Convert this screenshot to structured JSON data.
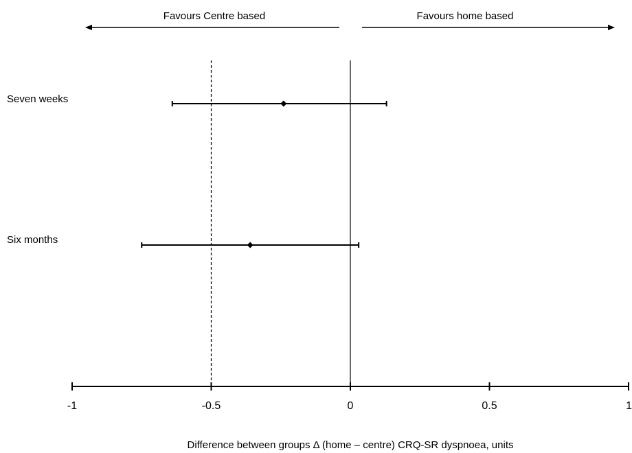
{
  "chart_data": {
    "type": "forest",
    "title": "",
    "xlabel": "Difference between groups Δ (home – centre) CRQ-SR dyspnoea, units",
    "ylabel": "",
    "xlim": [
      -1,
      1
    ],
    "x_ticks": [
      -1,
      -0.5,
      0,
      0.5,
      1
    ],
    "x_tick_labels": [
      "-1",
      "-0.5",
      "0",
      "0.5",
      "1"
    ],
    "grid": false,
    "direction_labels": {
      "left": "Favours Centre based",
      "right": "Favours home based"
    },
    "reference_lines": [
      {
        "x": 0,
        "style": "solid"
      },
      {
        "x": -0.5,
        "style": "dashed"
      }
    ],
    "rows": [
      {
        "label": "Seven weeks",
        "estimate": -0.24,
        "lower": -0.64,
        "upper": 0.13
      },
      {
        "label": "Six months",
        "estimate": -0.36,
        "lower": -0.75,
        "upper": 0.03
      }
    ],
    "colors": {
      "ink": "#000000",
      "background": "#ffffff"
    }
  }
}
